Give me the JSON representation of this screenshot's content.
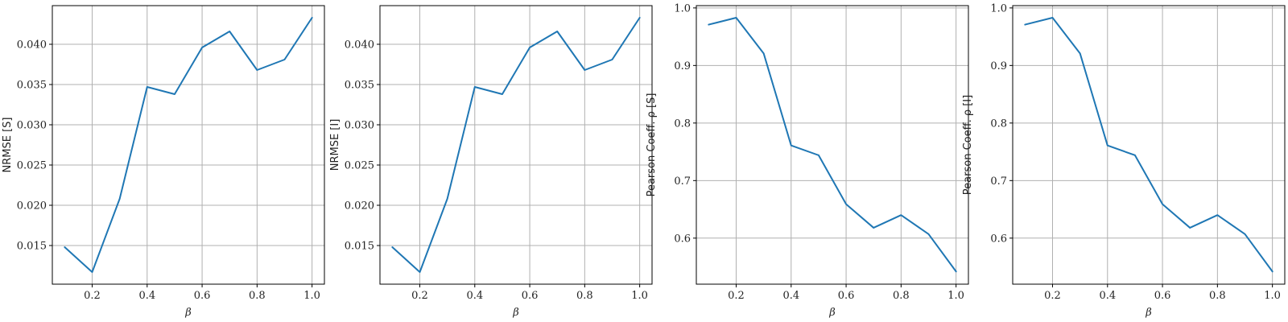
{
  "colors": {
    "series": "#1f77b4",
    "grid": "#b0b0b0"
  },
  "chart_data": [
    {
      "type": "line",
      "xlabel": "β",
      "ylabel": "NRMSE [S]",
      "x": [
        0.1,
        0.2,
        0.3,
        0.4,
        0.5,
        0.6,
        0.7,
        0.8,
        0.9,
        1.0
      ],
      "series": [
        {
          "values": [
            0.0148,
            0.0117,
            0.0208,
            0.0347,
            0.0338,
            0.0396,
            0.0416,
            0.0368,
            0.0381,
            0.0433
          ]
        }
      ],
      "xlim": [
        0.055,
        1.045
      ],
      "ylim": [
        0.0102,
        0.0448
      ],
      "xticks": [
        0.2,
        0.4,
        0.6,
        0.8,
        1.0
      ],
      "xtick_labels": [
        "0.2",
        "0.4",
        "0.6",
        "0.8",
        "1.0"
      ],
      "yticks": [
        0.015,
        0.02,
        0.025,
        0.03,
        0.035,
        0.04
      ],
      "ytick_labels": [
        "0.015",
        "0.020",
        "0.025",
        "0.030",
        "0.035",
        "0.040"
      ],
      "grid": true
    },
    {
      "type": "line",
      "xlabel": "β",
      "ylabel": "NRMSE [I]",
      "x": [
        0.1,
        0.2,
        0.3,
        0.4,
        0.5,
        0.6,
        0.7,
        0.8,
        0.9,
        1.0
      ],
      "series": [
        {
          "values": [
            0.0148,
            0.0117,
            0.0208,
            0.0347,
            0.0338,
            0.0396,
            0.0416,
            0.0368,
            0.0381,
            0.0433
          ]
        }
      ],
      "xlim": [
        0.055,
        1.045
      ],
      "ylim": [
        0.0102,
        0.0448
      ],
      "xticks": [
        0.2,
        0.4,
        0.6,
        0.8,
        1.0
      ],
      "xtick_labels": [
        "0.2",
        "0.4",
        "0.6",
        "0.8",
        "1.0"
      ],
      "yticks": [
        0.015,
        0.02,
        0.025,
        0.03,
        0.035,
        0.04
      ],
      "ytick_labels": [
        "0.015",
        "0.020",
        "0.025",
        "0.030",
        "0.035",
        "0.040"
      ],
      "grid": true
    },
    {
      "type": "line",
      "xlabel": "β",
      "ylabel": "Pearson Coeff.  ρ [S]",
      "x": [
        0.1,
        0.2,
        0.3,
        0.4,
        0.5,
        0.6,
        0.7,
        0.8,
        0.9,
        1.0
      ],
      "series": [
        {
          "values": [
            0.971,
            0.983,
            0.921,
            0.761,
            0.744,
            0.659,
            0.618,
            0.64,
            0.607,
            0.542
          ]
        }
      ],
      "xlim": [
        0.055,
        1.045
      ],
      "ylim": [
        0.52,
        1.004
      ],
      "xticks": [
        0.2,
        0.4,
        0.6,
        0.8,
        1.0
      ],
      "xtick_labels": [
        "0.2",
        "0.4",
        "0.6",
        "0.8",
        "1.0"
      ],
      "yticks": [
        0.6,
        0.7,
        0.8,
        0.9,
        1.0
      ],
      "ytick_labels": [
        "0.6",
        "0.7",
        "0.8",
        "0.9",
        "1.0"
      ],
      "grid": true
    },
    {
      "type": "line",
      "xlabel": "β",
      "ylabel": "Pearson Coeff.  ρ [I]",
      "x": [
        0.1,
        0.2,
        0.3,
        0.4,
        0.5,
        0.6,
        0.7,
        0.8,
        0.9,
        1.0
      ],
      "series": [
        {
          "values": [
            0.971,
            0.983,
            0.921,
            0.761,
            0.744,
            0.659,
            0.618,
            0.64,
            0.607,
            0.542
          ]
        }
      ],
      "xlim": [
        0.055,
        1.045
      ],
      "ylim": [
        0.52,
        1.004
      ],
      "xticks": [
        0.2,
        0.4,
        0.6,
        0.8,
        1.0
      ],
      "xtick_labels": [
        "0.2",
        "0.4",
        "0.6",
        "0.8",
        "1.0"
      ],
      "yticks": [
        0.6,
        0.7,
        0.8,
        0.9,
        1.0
      ],
      "ytick_labels": [
        "0.6",
        "0.7",
        "0.8",
        "0.9",
        "1.0"
      ],
      "grid": true
    }
  ]
}
